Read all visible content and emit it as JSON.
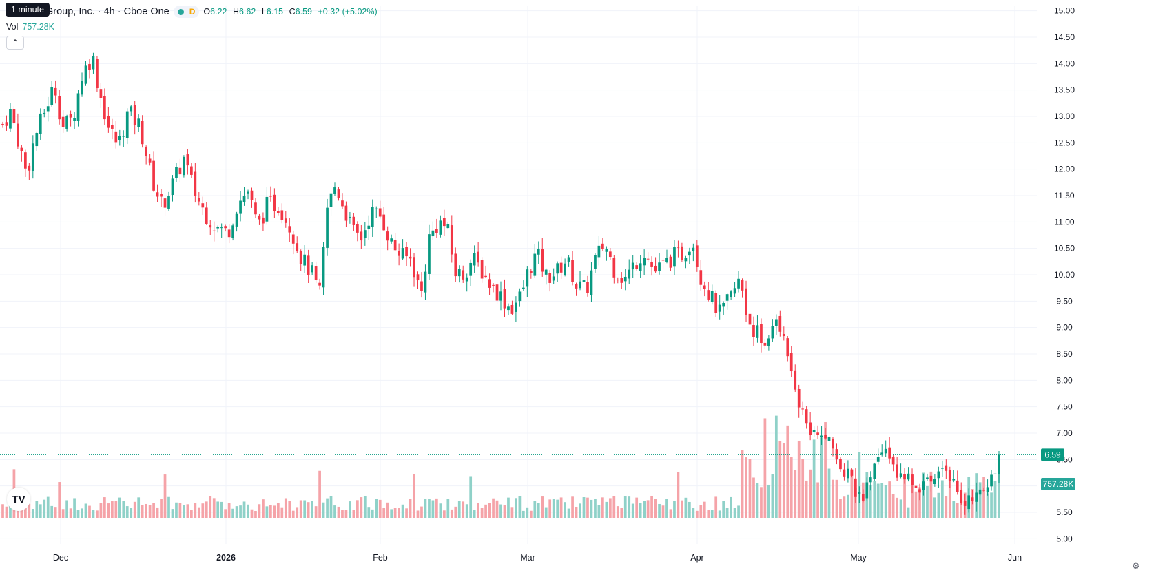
{
  "header": {
    "title": "Group, Inc. · 4h · Cboe One",
    "interval_tooltip": "1 minute",
    "d_marker": "D",
    "ohlc": {
      "o_label": "O",
      "o": "6.22",
      "h_label": "H",
      "h": "6.62",
      "l_label": "L",
      "l": "6.15",
      "c_label": "C",
      "c": "6.59",
      "change": "+0.32 (+5.02%)"
    },
    "volume_label": "Vol",
    "volume_value": "757.28K",
    "collapse_icon": "chevron-up-icon"
  },
  "colors": {
    "up": "#089981",
    "down": "#f23645",
    "vol_up": "#8fd1c8",
    "vol_down": "#f5a3a8",
    "grid": "#f0f3fa",
    "text": "#131722"
  },
  "chart_data": {
    "type": "candlestick",
    "title": "",
    "y_axis": {
      "min": 4.9,
      "max": 15.1,
      "ticks": [
        "15.00",
        "14.50",
        "14.00",
        "13.50",
        "13.00",
        "12.50",
        "12.00",
        "11.50",
        "11.00",
        "10.50",
        "10.00",
        "9.50",
        "9.00",
        "8.50",
        "8.00",
        "7.50",
        "7.00",
        "6.50",
        "6.00",
        "5.50",
        "5.00"
      ]
    },
    "x_axis": {
      "labels": [
        "Dec",
        "2026",
        "Feb",
        "Mar",
        "Apr",
        "May",
        "Jun"
      ]
    },
    "last_price": "6.59",
    "last_volume": "757.28K",
    "close_path": [
      {
        "t": 0.0,
        "c": 12.85
      },
      {
        "t": 0.008,
        "c": 13.1
      },
      {
        "t": 0.016,
        "c": 12.5
      },
      {
        "t": 0.024,
        "c": 11.9
      },
      {
        "t": 0.032,
        "c": 12.6
      },
      {
        "t": 0.042,
        "c": 13.1
      },
      {
        "t": 0.052,
        "c": 13.6
      },
      {
        "t": 0.06,
        "c": 12.8
      },
      {
        "t": 0.07,
        "c": 12.95
      },
      {
        "t": 0.08,
        "c": 13.8
      },
      {
        "t": 0.09,
        "c": 14.15
      },
      {
        "t": 0.096,
        "c": 13.55
      },
      {
        "t": 0.106,
        "c": 12.8
      },
      {
        "t": 0.116,
        "c": 12.45
      },
      {
        "t": 0.126,
        "c": 13.1
      },
      {
        "t": 0.138,
        "c": 12.8
      },
      {
        "t": 0.15,
        "c": 11.8
      },
      {
        "t": 0.16,
        "c": 11.3
      },
      {
        "t": 0.17,
        "c": 11.7
      },
      {
        "t": 0.182,
        "c": 12.2
      },
      {
        "t": 0.192,
        "c": 11.6
      },
      {
        "t": 0.202,
        "c": 11.2
      },
      {
        "t": 0.214,
        "c": 10.9
      },
      {
        "t": 0.226,
        "c": 10.8
      },
      {
        "t": 0.236,
        "c": 11.35
      },
      {
        "t": 0.246,
        "c": 11.6
      },
      {
        "t": 0.256,
        "c": 10.9
      },
      {
        "t": 0.266,
        "c": 11.35
      },
      {
        "t": 0.278,
        "c": 11.3
      },
      {
        "t": 0.29,
        "c": 10.85
      },
      {
        "t": 0.3,
        "c": 10.3
      },
      {
        "t": 0.31,
        "c": 10.05
      },
      {
        "t": 0.318,
        "c": 9.6
      },
      {
        "t": 0.326,
        "c": 11.3
      },
      {
        "t": 0.334,
        "c": 11.7
      },
      {
        "t": 0.344,
        "c": 11.2
      },
      {
        "t": 0.352,
        "c": 10.8
      },
      {
        "t": 0.36,
        "c": 10.7
      },
      {
        "t": 0.37,
        "c": 11.2
      },
      {
        "t": 0.38,
        "c": 11.1
      },
      {
        "t": 0.39,
        "c": 10.6
      },
      {
        "t": 0.4,
        "c": 10.35
      },
      {
        "t": 0.41,
        "c": 10.3
      },
      {
        "t": 0.42,
        "c": 9.6
      },
      {
        "t": 0.428,
        "c": 10.7
      },
      {
        "t": 0.438,
        "c": 11.0
      },
      {
        "t": 0.446,
        "c": 10.9
      },
      {
        "t": 0.454,
        "c": 10.05
      },
      {
        "t": 0.462,
        "c": 10.0
      },
      {
        "t": 0.472,
        "c": 10.3
      },
      {
        "t": 0.48,
        "c": 10.1
      },
      {
        "t": 0.49,
        "c": 9.8
      },
      {
        "t": 0.5,
        "c": 9.6
      },
      {
        "t": 0.51,
        "c": 9.35
      },
      {
        "t": 0.52,
        "c": 9.6
      },
      {
        "t": 0.528,
        "c": 10.1
      },
      {
        "t": 0.536,
        "c": 10.4
      },
      {
        "t": 0.546,
        "c": 9.95
      },
      {
        "t": 0.556,
        "c": 10.05
      },
      {
        "t": 0.566,
        "c": 10.3
      },
      {
        "t": 0.576,
        "c": 9.8
      },
      {
        "t": 0.586,
        "c": 9.7
      },
      {
        "t": 0.594,
        "c": 10.25
      },
      {
        "t": 0.604,
        "c": 10.6
      },
      {
        "t": 0.614,
        "c": 10.1
      },
      {
        "t": 0.624,
        "c": 9.9
      },
      {
        "t": 0.634,
        "c": 10.2
      },
      {
        "t": 0.644,
        "c": 10.45
      },
      {
        "t": 0.654,
        "c": 10.05
      },
      {
        "t": 0.664,
        "c": 10.2
      },
      {
        "t": 0.674,
        "c": 10.35
      },
      {
        "t": 0.684,
        "c": 10.4
      },
      {
        "t": 0.692,
        "c": 10.7
      },
      {
        "t": 0.7,
        "c": 10.0
      },
      {
        "t": 0.71,
        "c": 9.6
      },
      {
        "t": 0.72,
        "c": 9.25
      },
      {
        "t": 0.73,
        "c": 9.55
      },
      {
        "t": 0.74,
        "c": 9.9
      },
      {
        "t": 0.75,
        "c": 9.1
      },
      {
        "t": 0.76,
        "c": 8.8
      },
      {
        "t": 0.768,
        "c": 8.65
      },
      {
        "t": 0.776,
        "c": 9.2
      },
      {
        "t": 0.784,
        "c": 8.9
      },
      {
        "t": 0.792,
        "c": 8.25
      },
      {
        "t": 0.8,
        "c": 7.45
      },
      {
        "t": 0.808,
        "c": 7.2
      },
      {
        "t": 0.816,
        "c": 6.9
      },
      {
        "t": 0.824,
        "c": 7.1
      },
      {
        "t": 0.832,
        "c": 6.75
      },
      {
        "t": 0.84,
        "c": 6.2
      },
      {
        "t": 0.848,
        "c": 6.3
      },
      {
        "t": 0.856,
        "c": 5.95
      },
      {
        "t": 0.864,
        "c": 5.75
      },
      {
        "t": 0.874,
        "c": 6.3
      },
      {
        "t": 0.884,
        "c": 6.7
      },
      {
        "t": 0.894,
        "c": 6.5
      },
      {
        "t": 0.904,
        "c": 6.0
      },
      {
        "t": 0.914,
        "c": 6.2
      },
      {
        "t": 0.924,
        "c": 5.95
      },
      {
        "t": 0.934,
        "c": 6.15
      },
      {
        "t": 0.944,
        "c": 6.55
      },
      {
        "t": 0.954,
        "c": 6.1
      },
      {
        "t": 0.964,
        "c": 5.7
      },
      {
        "t": 0.974,
        "c": 5.65
      },
      {
        "t": 0.984,
        "c": 5.95
      },
      {
        "t": 0.992,
        "c": 6.15
      },
      {
        "t": 1.0,
        "c": 6.59
      }
    ]
  }
}
